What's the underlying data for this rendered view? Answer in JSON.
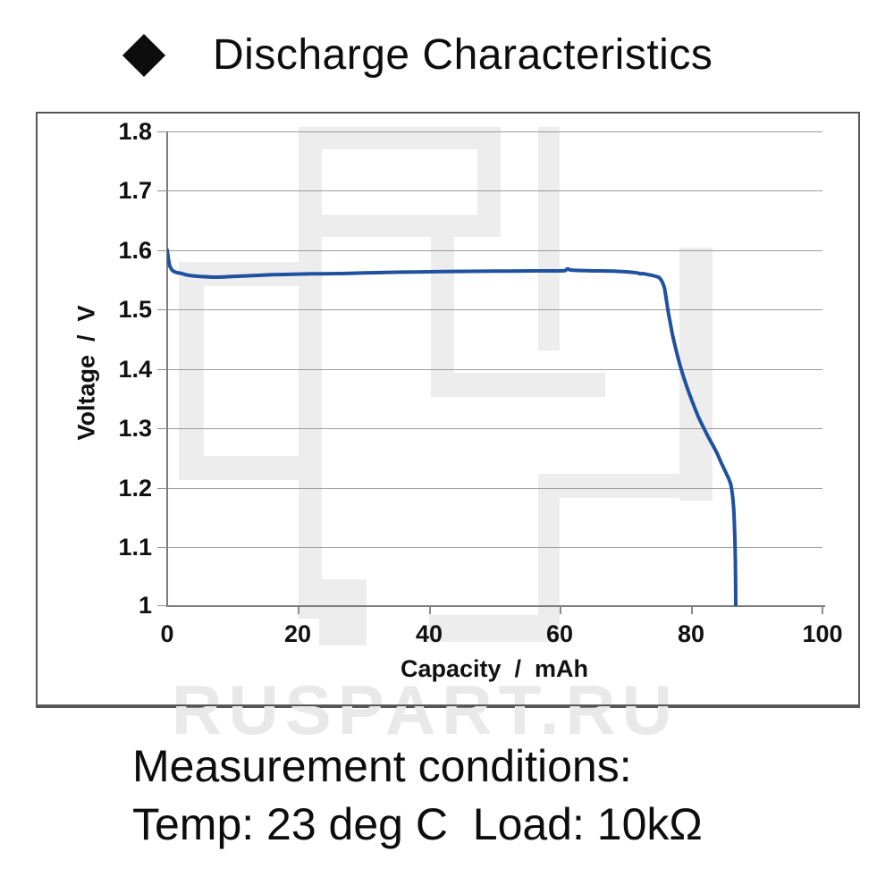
{
  "title": {
    "bullet": "diamond",
    "text": "Discharge Characteristics"
  },
  "watermark": {
    "text": "RUSPART.RU"
  },
  "conditions": {
    "line1": "Measurement conditions:",
    "line2": "Temp: 23 deg C  Load: 10kΩ"
  },
  "colors": {
    "curve": "#1f519f",
    "grid": "#9b9b9b",
    "axis": "#7c7c7c",
    "panel_border": "#565656",
    "watermark": "#ededed",
    "text": "#111111"
  },
  "chart_data": {
    "type": "line",
    "title": "Discharge Characteristics",
    "xlabel": "Capacity  /  mAh",
    "ylabel": "Voltage  /  V",
    "xlim": [
      0,
      100
    ],
    "ylim": [
      1.0,
      1.8
    ],
    "x_ticks": [
      0,
      20,
      40,
      60,
      80,
      100
    ],
    "y_ticks": [
      1.8,
      1.7,
      1.6,
      1.5,
      1.4,
      1.3,
      1.2,
      1.1,
      1
    ],
    "grid": "horizontal only",
    "legend": "none",
    "line_color": "#1f519f",
    "series": [
      {
        "name": "discharge-curve",
        "points": [
          [
            0,
            1.6
          ],
          [
            0.2,
            1.584
          ],
          [
            0.4,
            1.573
          ],
          [
            0.7,
            1.567
          ],
          [
            1,
            1.564
          ],
          [
            1.5,
            1.562
          ],
          [
            2,
            1.561
          ],
          [
            3,
            1.558
          ],
          [
            4,
            1.5565
          ],
          [
            5,
            1.5555
          ],
          [
            6,
            1.555
          ],
          [
            7,
            1.5545
          ],
          [
            8,
            1.5545
          ],
          [
            9,
            1.555
          ],
          [
            10,
            1.5555
          ],
          [
            12,
            1.5565
          ],
          [
            14,
            1.5575
          ],
          [
            16,
            1.5585
          ],
          [
            18,
            1.559
          ],
          [
            20,
            1.5595
          ],
          [
            22,
            1.56
          ],
          [
            24,
            1.5602
          ],
          [
            26,
            1.5605
          ],
          [
            28,
            1.5608
          ],
          [
            30,
            1.5615
          ],
          [
            32,
            1.562
          ],
          [
            34,
            1.5625
          ],
          [
            36,
            1.5628
          ],
          [
            38,
            1.563
          ],
          [
            40,
            1.5635
          ],
          [
            42,
            1.5638
          ],
          [
            44,
            1.564
          ],
          [
            46,
            1.5642
          ],
          [
            48,
            1.5643
          ],
          [
            50,
            1.5645
          ],
          [
            52,
            1.5645
          ],
          [
            54,
            1.5648
          ],
          [
            56,
            1.565
          ],
          [
            58,
            1.565
          ],
          [
            60,
            1.565
          ],
          [
            60.7,
            1.5652
          ],
          [
            61.1,
            1.5685
          ],
          [
            61.5,
            1.5665
          ],
          [
            62,
            1.566
          ],
          [
            63,
            1.5655
          ],
          [
            64,
            1.5652
          ],
          [
            65,
            1.565
          ],
          [
            66,
            1.565
          ],
          [
            67,
            1.5648
          ],
          [
            68,
            1.5645
          ],
          [
            69,
            1.564
          ],
          [
            70,
            1.5635
          ],
          [
            71,
            1.5625
          ],
          [
            71.8,
            1.5615
          ],
          [
            72.2,
            1.56
          ],
          [
            72.6,
            1.5605
          ],
          [
            73,
            1.5595
          ],
          [
            73.5,
            1.5585
          ],
          [
            74,
            1.5575
          ],
          [
            74.5,
            1.556
          ],
          [
            75,
            1.5545
          ],
          [
            75.3,
            1.551
          ],
          [
            75.6,
            1.5455
          ],
          [
            75.9,
            1.536
          ],
          [
            76.1,
            1.522
          ],
          [
            76.3,
            1.507
          ],
          [
            76.5,
            1.4935
          ],
          [
            76.8,
            1.476
          ],
          [
            77.1,
            1.458
          ],
          [
            77.4,
            1.4435
          ],
          [
            77.8,
            1.425
          ],
          [
            78.2,
            1.4085
          ],
          [
            78.6,
            1.3935
          ],
          [
            79,
            1.3795
          ],
          [
            79.5,
            1.3635
          ],
          [
            80,
            1.3485
          ],
          [
            80.5,
            1.334
          ],
          [
            81,
            1.3205
          ],
          [
            81.5,
            1.3085
          ],
          [
            82,
            1.2975
          ],
          [
            82.5,
            1.2865
          ],
          [
            83.2,
            1.2725
          ],
          [
            83.9,
            1.258
          ],
          [
            84.6,
            1.2405
          ],
          [
            85.2,
            1.2265
          ],
          [
            85.7,
            1.2145
          ],
          [
            86,
            1.2055
          ],
          [
            86.15,
            1.1965
          ],
          [
            86.3,
            1.1835
          ],
          [
            86.45,
            1.1645
          ],
          [
            86.55,
            1.1415
          ],
          [
            86.63,
            1.1145
          ],
          [
            86.7,
            1.0815
          ],
          [
            86.74,
            1.0425
          ],
          [
            86.77,
            1.0
          ]
        ]
      }
    ]
  }
}
